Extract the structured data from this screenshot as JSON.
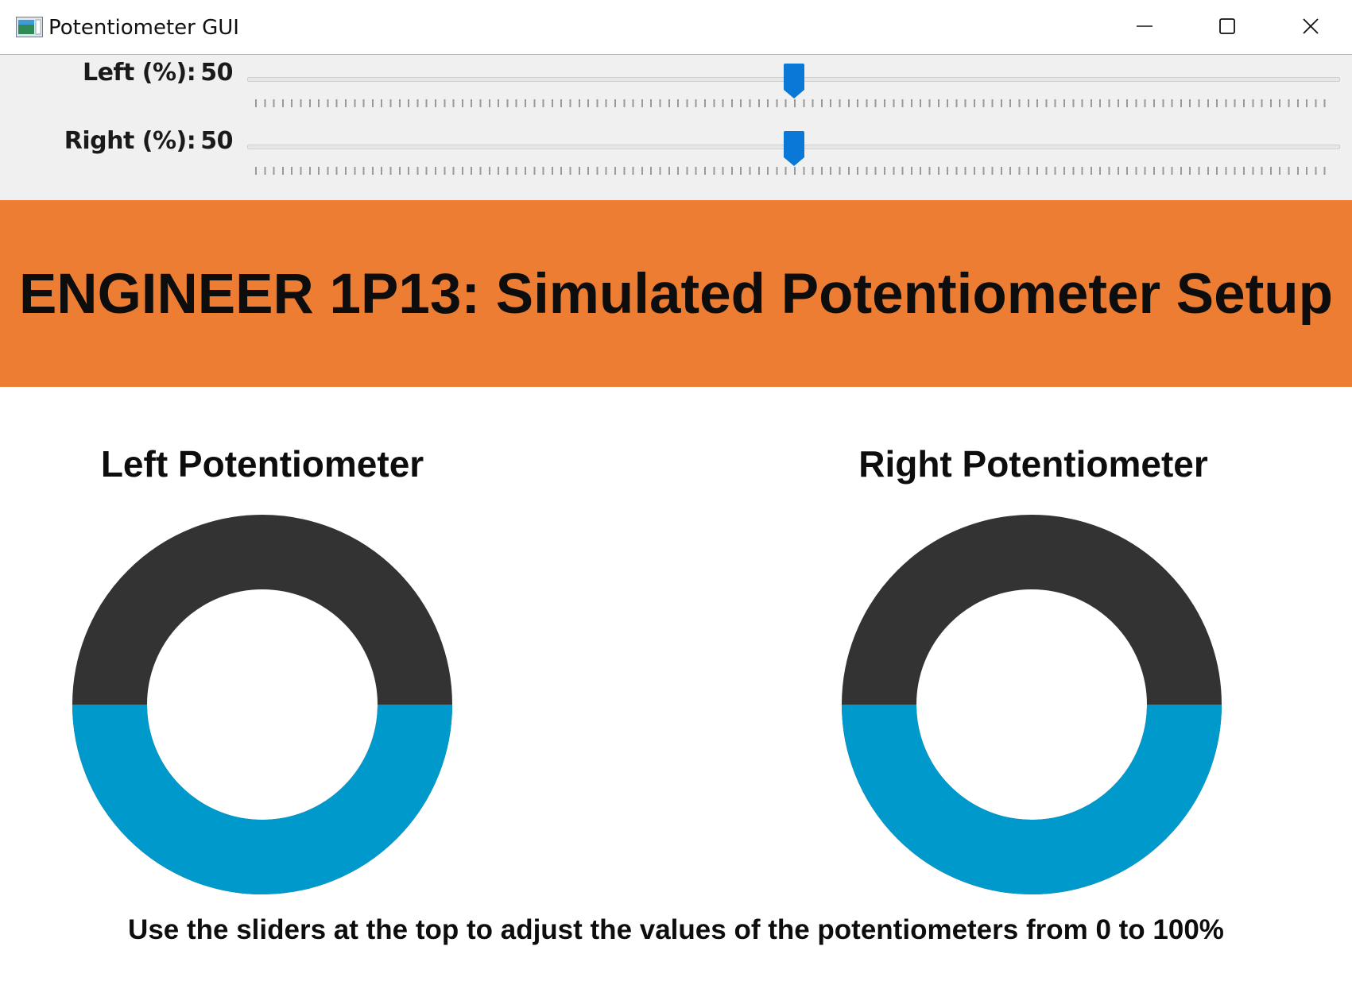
{
  "window": {
    "title": "Potentiometer GUI",
    "icon": "app-window-icon",
    "controls": {
      "minimize": "minimize-icon",
      "maximize": "maximize-icon",
      "close": "close-icon"
    }
  },
  "sliders": {
    "left": {
      "label": "Left (%):",
      "value": 50,
      "min": 0,
      "max": 100
    },
    "right": {
      "label": "Right (%):",
      "value": 50,
      "min": 0,
      "max": 100
    },
    "thumb_color": "#0a78d6"
  },
  "banner": {
    "title": "ENGINEER 1P13: Simulated Potentiometer Setup",
    "background": "#ec7d33"
  },
  "potentiometers": {
    "left": {
      "title": "Left Potentiometer",
      "value": 50
    },
    "right": {
      "title": "Right Potentiometer",
      "value": 50
    },
    "fill_color": "#0099cc",
    "track_color": "#333333"
  },
  "instructions": "Use the sliders at the top to adjust the values of the potentiometers from 0 to 100%"
}
